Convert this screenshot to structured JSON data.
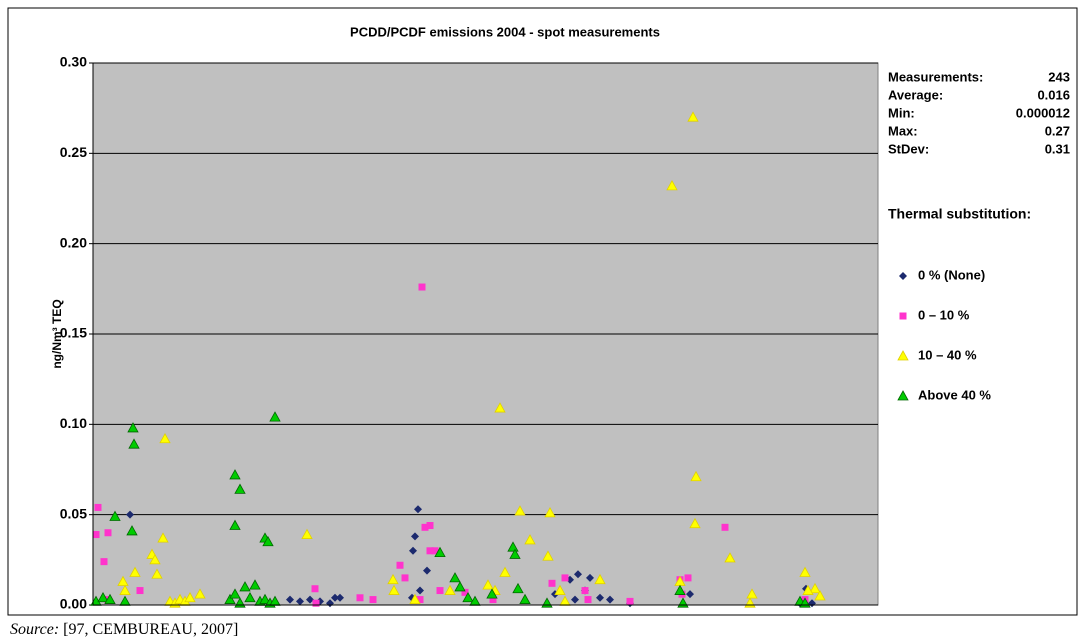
{
  "chart_data": {
    "type": "scatter",
    "title": "PCDD/PCDF emissions 2004 - spot measurements",
    "y_label": "ng/Nm³ TEQ",
    "xlim": [
      0,
      785
    ],
    "ylim": [
      0,
      0.3
    ],
    "yticks": [
      {
        "value": 0,
        "label": "0.00"
      },
      {
        "value": 0.05,
        "label": "0.05"
      },
      {
        "value": 0.1,
        "label": "0.10"
      },
      {
        "value": 0.15,
        "label": "0.15"
      },
      {
        "value": 0.2,
        "label": "0.20"
      },
      {
        "value": 0.25,
        "label": "0.25"
      },
      {
        "value": 0.3,
        "label": "0.30"
      }
    ],
    "grid": true,
    "stats": [
      {
        "label": "Measurements:",
        "value": 243
      },
      {
        "label": "Average:",
        "value": 0.016
      },
      {
        "label": "Min:",
        "value": 1.2e-05
      },
      {
        "label": "Max:",
        "value": 0.27
      },
      {
        "label": "StDev:",
        "value": 0.31
      }
    ],
    "legend_title": "Thermal substitution:",
    "series": [
      {
        "name": "0 % (None)",
        "color": "#1c2a6e",
        "marker": "diamond",
        "x": [
          37,
          197,
          207,
          217,
          227,
          237,
          242,
          247,
          325,
          322,
          320,
          334,
          319,
          327,
          462,
          477,
          485,
          497,
          492,
          507,
          482,
          517,
          537,
          597,
          707,
          713,
          719
        ],
        "values": [
          0.05,
          0.003,
          0.002,
          0.003,
          0.002,
          0.001,
          0.004,
          0.004,
          0.053,
          0.038,
          0.03,
          0.019,
          0.004,
          0.008,
          0.006,
          0.014,
          0.017,
          0.015,
          0.008,
          0.004,
          0.003,
          0.003,
          0.001,
          0.006,
          0.001,
          0.009,
          0.001
        ]
      },
      {
        "name": "0 – 10 %",
        "color": "#ff33cc",
        "marker": "square",
        "x": [
          3,
          5,
          15,
          11,
          15,
          47,
          222,
          223,
          267,
          280,
          329,
          307,
          332,
          337,
          312,
          337,
          342,
          327,
          347,
          372,
          400,
          459,
          472,
          492,
          495,
          587,
          595,
          632,
          712,
          589,
          537
        ],
        "values": [
          0.039,
          0.054,
          0.04,
          0.024,
          0.003,
          0.008,
          0.009,
          0.001,
          0.004,
          0.003,
          0.176,
          0.022,
          0.043,
          0.044,
          0.015,
          0.03,
          0.03,
          0.003,
          0.008,
          0.007,
          0.003,
          0.012,
          0.015,
          0.008,
          0.003,
          0.014,
          0.015,
          0.043,
          0.003,
          0.006,
          0.002
        ]
      },
      {
        "name": "10 – 40 %",
        "color": "#ffff00",
        "marker": "triangle",
        "x": [
          30,
          32,
          42,
          59,
          62,
          64,
          70,
          72,
          77,
          82,
          87,
          92,
          97,
          107,
          214,
          300,
          301,
          322,
          357,
          407,
          412,
          402,
          395,
          427,
          437,
          455,
          457,
          467,
          472,
          507,
          579,
          600,
          603,
          602,
          637,
          657,
          659,
          712,
          722,
          727,
          715,
          587
        ],
        "values": [
          0.013,
          0.008,
          0.018,
          0.028,
          0.025,
          0.017,
          0.037,
          0.092,
          0.002,
          0.001,
          0.003,
          0.002,
          0.004,
          0.006,
          0.039,
          0.014,
          0.008,
          0.003,
          0.008,
          0.109,
          0.018,
          0.008,
          0.011,
          0.052,
          0.036,
          0.027,
          0.051,
          0.008,
          0.002,
          0.014,
          0.232,
          0.27,
          0.071,
          0.045,
          0.026,
          0.001,
          0.006,
          0.018,
          0.009,
          0.005,
          0.008,
          0.013
        ]
      },
      {
        "name": "Above 40 %",
        "color": "#00cc00",
        "marker": "triangle",
        "x": [
          3,
          10,
          40,
          41,
          22,
          39,
          17,
          32,
          142,
          147,
          142,
          182,
          172,
          175,
          137,
          142,
          147,
          152,
          157,
          162,
          167,
          172,
          177,
          182,
          347,
          362,
          367,
          375,
          382,
          399,
          420,
          422,
          425,
          432,
          454,
          587,
          590,
          707,
          712
        ],
        "values": [
          0.002,
          0.004,
          0.098,
          0.089,
          0.049,
          0.041,
          0.003,
          0.002,
          0.072,
          0.064,
          0.044,
          0.104,
          0.037,
          0.035,
          0.003,
          0.006,
          0.001,
          0.01,
          0.004,
          0.011,
          0.002,
          0.003,
          0.001,
          0.002,
          0.029,
          0.015,
          0.01,
          0.004,
          0.002,
          0.006,
          0.032,
          0.028,
          0.009,
          0.003,
          0.001,
          0.008,
          0.001,
          0.002,
          0.001
        ]
      }
    ]
  },
  "source": {
    "label": "Source:",
    "text": " [97, CEMBUREAU, 2007]"
  }
}
